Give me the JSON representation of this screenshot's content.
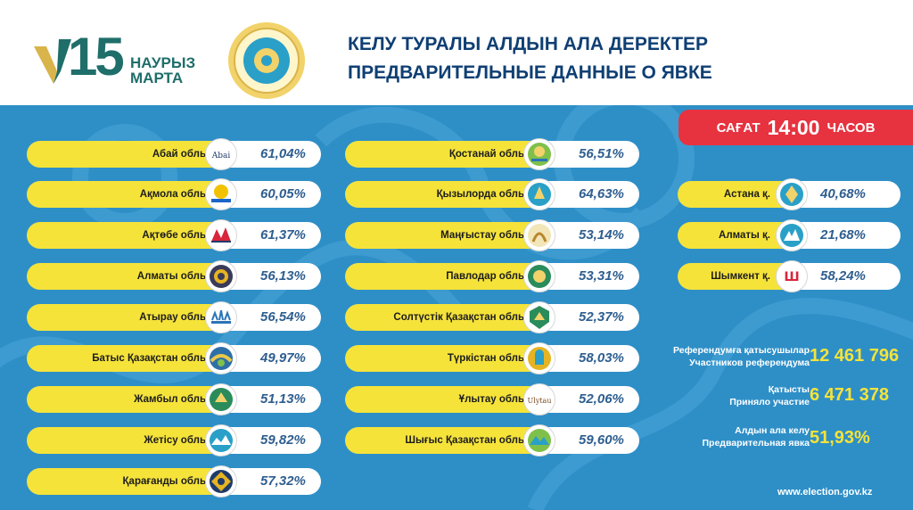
{
  "brand": {
    "number": "15",
    "day_kz": "НАУРЫЗ",
    "month_ru": "МАРТА"
  },
  "title": {
    "kz": "КЕЛУ ТУРАЛЫ АЛДЫН АЛА ДЕРЕКТЕР",
    "ru": "ПРЕДВАРИТЕЛЬНЫЕ ДАННЫЕ О ЯВКЕ"
  },
  "time": {
    "kz": "САҒАТ",
    "value": "14:00",
    "ru": "ЧАСОВ"
  },
  "regions_col1": [
    {
      "name": "Абай облысы",
      "pct": "61,04%"
    },
    {
      "name": "Ақмола облысы",
      "pct": "60,05%"
    },
    {
      "name": "Ақтөбе облысы",
      "pct": "61,37%"
    },
    {
      "name": "Алматы облысы",
      "pct": "56,13%"
    },
    {
      "name": "Атырау облысы",
      "pct": "56,54%"
    },
    {
      "name": "Батыс Қазақстан облысы",
      "pct": "49,97%"
    },
    {
      "name": "Жамбыл облысы",
      "pct": "51,13%"
    },
    {
      "name": "Жетісу облысы",
      "pct": "59,82%"
    },
    {
      "name": "Қарағанды облысы",
      "pct": "57,32%"
    }
  ],
  "regions_col2": [
    {
      "name": "Қостанай облысы",
      "pct": "56,51%"
    },
    {
      "name": "Қызылорда облысы",
      "pct": "64,63%"
    },
    {
      "name": "Маңғыстау облысы",
      "pct": "53,14%"
    },
    {
      "name": "Павлодар облысы",
      "pct": "53,31%"
    },
    {
      "name": "Солтүстік Қазақстан облысы",
      "pct": "52,37%"
    },
    {
      "name": "Түркістан облысы",
      "pct": "58,03%"
    },
    {
      "name": "Ұлытау облысы",
      "pct": "52,06%"
    },
    {
      "name": "Шығыс Қазақстан облысы",
      "pct": "59,60%"
    }
  ],
  "cities": [
    {
      "name": "Астана қ.",
      "pct": "40,68%"
    },
    {
      "name": "Алматы қ.",
      "pct": "21,68%"
    },
    {
      "name": "Шымкент қ.",
      "pct": "58,24%"
    }
  ],
  "stats": {
    "participants": {
      "kz": "Референдумға қатысушылар",
      "ru": "Участников референдума",
      "value": "12 461 796"
    },
    "voted": {
      "kz": "Қатысты",
      "ru": "Приняло участие",
      "value": "6 471 378"
    },
    "turnout": {
      "kz": "Алдын ала келу",
      "ru": "Предварительная явка",
      "value": "51,93%"
    }
  },
  "footer": {
    "url": "www.election.gov.kz"
  },
  "colors": {
    "accent_blue": "#2e8fc7",
    "yellow": "#f5e33a",
    "red": "#e7323f",
    "dark_teal": "#1f6e6a",
    "title_navy": "#0f3f73"
  }
}
